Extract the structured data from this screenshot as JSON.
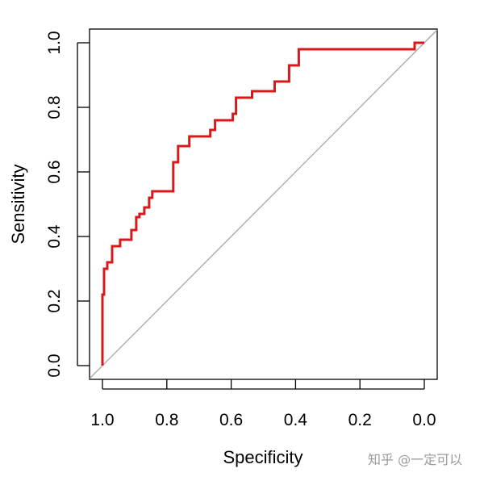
{
  "chart_data": {
    "type": "line",
    "title": "",
    "xlabel": "Specificity",
    "ylabel": "Sensitivity",
    "xlim": [
      1.0,
      0.0
    ],
    "ylim": [
      0.0,
      1.0
    ],
    "x_reversed": true,
    "x_ticks": [
      {
        "value": 1.0,
        "label": "1.0"
      },
      {
        "value": 0.8,
        "label": "0.8"
      },
      {
        "value": 0.6,
        "label": "0.6"
      },
      {
        "value": 0.4,
        "label": "0.4"
      },
      {
        "value": 0.2,
        "label": "0.2"
      },
      {
        "value": 0.0,
        "label": "0.0"
      }
    ],
    "y_ticks": [
      {
        "value": 0.0,
        "label": "0.0"
      },
      {
        "value": 0.2,
        "label": "0.2"
      },
      {
        "value": 0.4,
        "label": "0.4"
      },
      {
        "value": 0.6,
        "label": "0.6"
      },
      {
        "value": 0.8,
        "label": "0.8"
      },
      {
        "value": 1.0,
        "label": "1.0"
      }
    ],
    "reference_line": {
      "name": "chance-diagonal",
      "from": [
        1.0,
        0.0
      ],
      "to": [
        0.0,
        1.0
      ],
      "color": "#a6a6a6"
    },
    "series": [
      {
        "name": "ROC curve",
        "color": "#d7191c",
        "specificity": [
          1.0,
          1.0,
          0.995,
          0.995,
          0.985,
          0.985,
          0.97,
          0.97,
          0.945,
          0.945,
          0.91,
          0.91,
          0.895,
          0.895,
          0.885,
          0.885,
          0.87,
          0.87,
          0.855,
          0.855,
          0.845,
          0.845,
          0.78,
          0.78,
          0.765,
          0.765,
          0.73,
          0.73,
          0.665,
          0.665,
          0.65,
          0.65,
          0.595,
          0.595,
          0.585,
          0.585,
          0.535,
          0.535,
          0.465,
          0.465,
          0.42,
          0.42,
          0.39,
          0.39,
          0.03,
          0.03,
          0.0
        ],
        "sensitivity": [
          0.0,
          0.22,
          0.22,
          0.3,
          0.3,
          0.32,
          0.32,
          0.37,
          0.37,
          0.39,
          0.39,
          0.42,
          0.42,
          0.46,
          0.46,
          0.47,
          0.47,
          0.49,
          0.49,
          0.52,
          0.52,
          0.54,
          0.54,
          0.63,
          0.63,
          0.68,
          0.68,
          0.71,
          0.71,
          0.73,
          0.73,
          0.76,
          0.76,
          0.78,
          0.78,
          0.83,
          0.83,
          0.85,
          0.85,
          0.88,
          0.88,
          0.93,
          0.93,
          0.98,
          0.98,
          1.0,
          1.0
        ]
      }
    ]
  },
  "watermark": {
    "text": "知乎 @一定可以"
  }
}
